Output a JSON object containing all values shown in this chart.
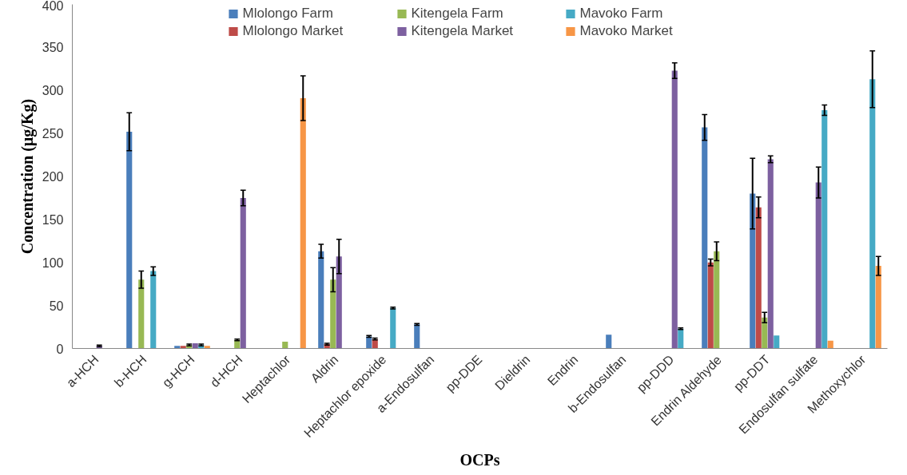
{
  "chart_data": {
    "type": "bar",
    "xlabel": "OCPs",
    "ylabel": "Concentration (µg/Kg)",
    "categories": [
      "a-HCH",
      "b-HCH",
      "g-HCH",
      "d-HCH",
      "Heptachlor",
      "Aldrin",
      "Heptachlor epoxide",
      "a-Endosulfan",
      "pp-DDE",
      "Dieldrin",
      "Endrin",
      "b-Endosulfan",
      "pp-DDD",
      "Endrin Aldehyde",
      "pp-DDT",
      "Endosulfan sulfate",
      "Methoxychlor"
    ],
    "series": [
      {
        "name": "Mlolongo Farm",
        "color": "#4a7ebb",
        "values": [
          null,
          252,
          3,
          null,
          null,
          113,
          14,
          28,
          null,
          null,
          null,
          16,
          null,
          257,
          180,
          null,
          null
        ],
        "errors": [
          null,
          22,
          null,
          null,
          null,
          8,
          1,
          1,
          null,
          null,
          null,
          null,
          null,
          15,
          41,
          null,
          null
        ]
      },
      {
        "name": "Mlolongo Market",
        "color": "#be4b48",
        "values": [
          null,
          null,
          3,
          null,
          null,
          5,
          11,
          null,
          null,
          null,
          null,
          null,
          null,
          100,
          164,
          null,
          null
        ],
        "errors": [
          null,
          null,
          null,
          null,
          null,
          1,
          1,
          null,
          null,
          null,
          null,
          null,
          null,
          4,
          12,
          null,
          null
        ]
      },
      {
        "name": "Kitengela Farm",
        "color": "#98b954",
        "values": [
          null,
          80,
          4,
          10,
          8,
          80,
          null,
          null,
          null,
          null,
          null,
          null,
          null,
          113,
          36,
          null,
          null
        ],
        "errors": [
          null,
          10,
          1,
          1,
          null,
          14,
          null,
          null,
          null,
          null,
          null,
          null,
          null,
          11,
          6,
          null,
          null
        ]
      },
      {
        "name": "Kitengela Market",
        "color": "#7d60a0",
        "values": [
          3,
          null,
          6,
          175,
          null,
          107,
          null,
          null,
          null,
          null,
          null,
          null,
          323,
          null,
          220,
          193,
          null
        ],
        "errors": [
          1,
          null,
          null,
          9,
          null,
          20,
          null,
          null,
          null,
          null,
          null,
          null,
          9,
          null,
          4,
          18,
          null
        ]
      },
      {
        "name": "Mavoko Farm",
        "color": "#46aac5",
        "values": [
          null,
          90,
          4,
          null,
          null,
          null,
          47,
          null,
          null,
          null,
          null,
          null,
          23,
          null,
          15,
          277,
          313
        ],
        "errors": [
          null,
          5,
          1,
          null,
          null,
          null,
          1,
          null,
          null,
          null,
          null,
          null,
          1,
          null,
          null,
          6,
          33
        ]
      },
      {
        "name": "Mavoko Market",
        "color": "#f79646",
        "values": [
          null,
          null,
          3,
          null,
          291,
          null,
          null,
          null,
          null,
          null,
          null,
          null,
          null,
          null,
          null,
          9,
          96
        ],
        "errors": [
          null,
          null,
          null,
          null,
          26,
          null,
          null,
          null,
          null,
          null,
          null,
          null,
          null,
          null,
          null,
          null,
          11
        ]
      }
    ],
    "ylim": [
      0,
      400
    ],
    "yticks": [
      0,
      50,
      100,
      150,
      200,
      250,
      300,
      350,
      400
    ],
    "grid": false,
    "legend": "top"
  }
}
